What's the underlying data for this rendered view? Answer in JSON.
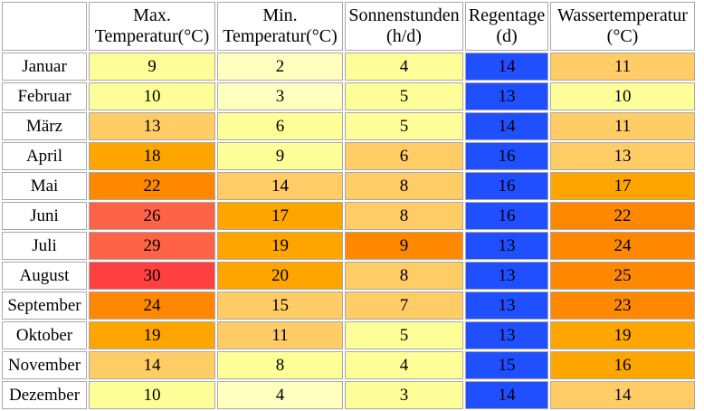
{
  "table": {
    "columns": [
      {
        "line1": "Max.",
        "line2": "Temperatur(°C)"
      },
      {
        "line1": "Min.",
        "line2": "Temperatur(°C)"
      },
      {
        "line1": "Sonnenstunden",
        "line2": "(h/d)"
      },
      {
        "line1": "Regentage",
        "line2": "(d)"
      },
      {
        "line1": "Wassertemperatur",
        "line2": "(°C)"
      }
    ],
    "rows": [
      {
        "month": "Januar",
        "cells": [
          {
            "v": "9",
            "c": "#ffff99"
          },
          {
            "v": "2",
            "c": "#ffffc0"
          },
          {
            "v": "4",
            "c": "#ffff99"
          },
          {
            "v": "14",
            "c": "#1f4fff"
          },
          {
            "v": "11",
            "c": "#ffcc66"
          }
        ]
      },
      {
        "month": "Februar",
        "cells": [
          {
            "v": "10",
            "c": "#ffff99"
          },
          {
            "v": "3",
            "c": "#ffffc0"
          },
          {
            "v": "5",
            "c": "#ffff99"
          },
          {
            "v": "13",
            "c": "#1f4fff"
          },
          {
            "v": "10",
            "c": "#ffff99"
          }
        ]
      },
      {
        "month": "März",
        "cells": [
          {
            "v": "13",
            "c": "#ffcc66"
          },
          {
            "v": "6",
            "c": "#ffff99"
          },
          {
            "v": "5",
            "c": "#ffff99"
          },
          {
            "v": "14",
            "c": "#1f4fff"
          },
          {
            "v": "11",
            "c": "#ffcc66"
          }
        ]
      },
      {
        "month": "April",
        "cells": [
          {
            "v": "18",
            "c": "#ffa500"
          },
          {
            "v": "9",
            "c": "#ffff99"
          },
          {
            "v": "6",
            "c": "#ffcc66"
          },
          {
            "v": "16",
            "c": "#1f4fff"
          },
          {
            "v": "13",
            "c": "#ffcc66"
          }
        ]
      },
      {
        "month": "Mai",
        "cells": [
          {
            "v": "22",
            "c": "#ff8800"
          },
          {
            "v": "14",
            "c": "#ffcc66"
          },
          {
            "v": "8",
            "c": "#ffcc66"
          },
          {
            "v": "16",
            "c": "#1f4fff"
          },
          {
            "v": "17",
            "c": "#ffa500"
          }
        ]
      },
      {
        "month": "Juni",
        "cells": [
          {
            "v": "26",
            "c": "#ff6347"
          },
          {
            "v": "17",
            "c": "#ffa500"
          },
          {
            "v": "8",
            "c": "#ffcc66"
          },
          {
            "v": "16",
            "c": "#1f4fff"
          },
          {
            "v": "22",
            "c": "#ff8800"
          }
        ]
      },
      {
        "month": "Juli",
        "cells": [
          {
            "v": "29",
            "c": "#ff6347"
          },
          {
            "v": "19",
            "c": "#ffa500"
          },
          {
            "v": "9",
            "c": "#ff8800"
          },
          {
            "v": "13",
            "c": "#1f4fff"
          },
          {
            "v": "24",
            "c": "#ff8800"
          }
        ]
      },
      {
        "month": "August",
        "cells": [
          {
            "v": "30",
            "c": "#ff4040"
          },
          {
            "v": "20",
            "c": "#ffa500"
          },
          {
            "v": "8",
            "c": "#ffcc66"
          },
          {
            "v": "13",
            "c": "#1f4fff"
          },
          {
            "v": "25",
            "c": "#ff8800"
          }
        ]
      },
      {
        "month": "September",
        "cells": [
          {
            "v": "24",
            "c": "#ff8800"
          },
          {
            "v": "15",
            "c": "#ffcc66"
          },
          {
            "v": "7",
            "c": "#ffcc66"
          },
          {
            "v": "13",
            "c": "#1f4fff"
          },
          {
            "v": "23",
            "c": "#ff8800"
          }
        ]
      },
      {
        "month": "Oktober",
        "cells": [
          {
            "v": "19",
            "c": "#ffa500"
          },
          {
            "v": "11",
            "c": "#ffcc66"
          },
          {
            "v": "5",
            "c": "#ffff99"
          },
          {
            "v": "13",
            "c": "#1f4fff"
          },
          {
            "v": "19",
            "c": "#ffa500"
          }
        ]
      },
      {
        "month": "November",
        "cells": [
          {
            "v": "14",
            "c": "#ffcc66"
          },
          {
            "v": "8",
            "c": "#ffff99"
          },
          {
            "v": "4",
            "c": "#ffff99"
          },
          {
            "v": "15",
            "c": "#1f4fff"
          },
          {
            "v": "16",
            "c": "#ffa500"
          }
        ]
      },
      {
        "month": "Dezember",
        "cells": [
          {
            "v": "10",
            "c": "#ffff99"
          },
          {
            "v": "4",
            "c": "#ffffc0"
          },
          {
            "v": "3",
            "c": "#ffff99"
          },
          {
            "v": "14",
            "c": "#1f4fff"
          },
          {
            "v": "14",
            "c": "#ffcc66"
          }
        ]
      }
    ]
  }
}
